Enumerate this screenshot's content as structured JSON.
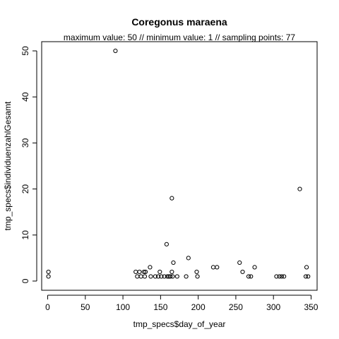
{
  "chart_data": {
    "type": "scatter",
    "title": "Coregonus maraena",
    "subtitle": "maximum value: 50  //  minimum value: 1  // sampling points: 77",
    "xlabel": "tmp_specs$day_of_year",
    "ylabel": "tmp_specs$individuenzahlGesamt",
    "xlim": [
      -8,
      358
    ],
    "ylim": [
      -2,
      52
    ],
    "xticks": [
      0,
      50,
      100,
      150,
      200,
      250,
      300,
      350
    ],
    "yticks": [
      0,
      10,
      20,
      30,
      40,
      50
    ],
    "grid": false,
    "points": [
      {
        "x": 1,
        "y": 2
      },
      {
        "x": 1,
        "y": 1
      },
      {
        "x": 90,
        "y": 50
      },
      {
        "x": 117,
        "y": 2
      },
      {
        "x": 119,
        "y": 1
      },
      {
        "x": 122,
        "y": 2
      },
      {
        "x": 124,
        "y": 1
      },
      {
        "x": 128,
        "y": 2
      },
      {
        "x": 129,
        "y": 1
      },
      {
        "x": 130,
        "y": 2
      },
      {
        "x": 136,
        "y": 3
      },
      {
        "x": 137,
        "y": 1
      },
      {
        "x": 143,
        "y": 1
      },
      {
        "x": 147,
        "y": 1
      },
      {
        "x": 149,
        "y": 2
      },
      {
        "x": 151,
        "y": 1
      },
      {
        "x": 155,
        "y": 1
      },
      {
        "x": 158,
        "y": 8
      },
      {
        "x": 159,
        "y": 1
      },
      {
        "x": 161,
        "y": 1
      },
      {
        "x": 163,
        "y": 1
      },
      {
        "x": 165,
        "y": 2
      },
      {
        "x": 165,
        "y": 18
      },
      {
        "x": 166,
        "y": 1
      },
      {
        "x": 167,
        "y": 4
      },
      {
        "x": 172,
        "y": 1
      },
      {
        "x": 184,
        "y": 1
      },
      {
        "x": 187,
        "y": 5
      },
      {
        "x": 198,
        "y": 2
      },
      {
        "x": 199,
        "y": 1
      },
      {
        "x": 220,
        "y": 3
      },
      {
        "x": 225,
        "y": 3
      },
      {
        "x": 255,
        "y": 4
      },
      {
        "x": 259,
        "y": 2
      },
      {
        "x": 267,
        "y": 1
      },
      {
        "x": 270,
        "y": 1
      },
      {
        "x": 275,
        "y": 3
      },
      {
        "x": 304,
        "y": 1
      },
      {
        "x": 308,
        "y": 1
      },
      {
        "x": 311,
        "y": 1
      },
      {
        "x": 314,
        "y": 1
      },
      {
        "x": 335,
        "y": 20
      },
      {
        "x": 343,
        "y": 1
      },
      {
        "x": 344,
        "y": 3
      },
      {
        "x": 346,
        "y": 1
      }
    ]
  }
}
